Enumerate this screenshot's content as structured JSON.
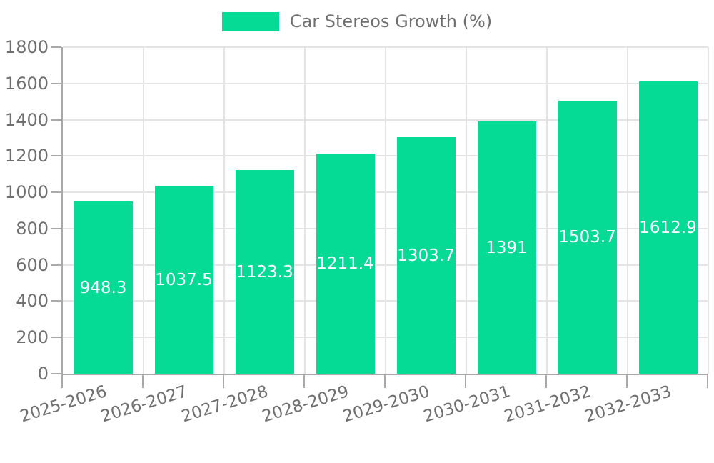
{
  "colors": {
    "bar": "#05DB94",
    "grid": "#E4E4E4",
    "axis": "#A9A9A9",
    "text": "#6F6F6F",
    "bar_label": "#FFFFFF",
    "background": "#FFFFFF"
  },
  "chart_data": {
    "type": "bar",
    "title": "Car Stereos Growth (%)",
    "xlabel": "",
    "ylabel": "",
    "categories": [
      "2025-2026",
      "2026-2027",
      "2027-2028",
      "2028-2029",
      "2029-2030",
      "2030-2031",
      "2031-2032",
      "2032-2033"
    ],
    "values": [
      948.3,
      1037.5,
      1123.3,
      1211.4,
      1303.7,
      1391,
      1503.7,
      1612.9
    ],
    "value_labels": [
      "948.3",
      "1037.5",
      "1123.3",
      "1211.4",
      "1303.7",
      "1391",
      "1503.7",
      "1612.9"
    ],
    "ylim": [
      0,
      1800
    ],
    "y_ticks": [
      0,
      200,
      400,
      600,
      800,
      1000,
      1200,
      1400,
      1600,
      1800
    ],
    "grid": "on",
    "legend_position": "top-center",
    "x_label_rotation_deg": -17
  }
}
